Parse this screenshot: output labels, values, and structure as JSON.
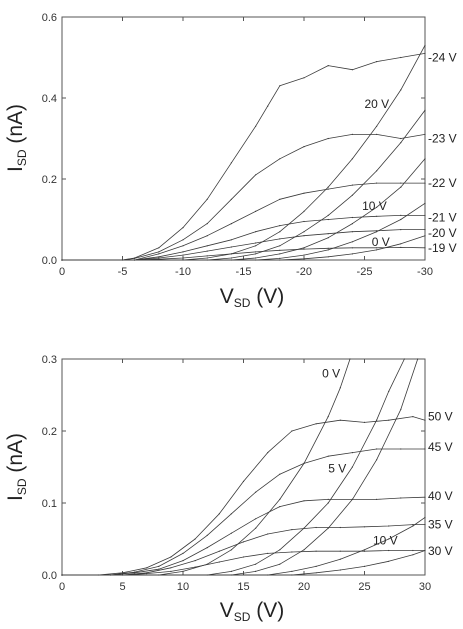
{
  "chart_data": [
    {
      "type": "line",
      "xlabel_main": "V",
      "xlabel_sub": "SD",
      "xlabel_unit": " (V)",
      "ylabel_main": "I",
      "ylabel_sub": "SD",
      "ylabel_unit": " (nA)",
      "xlim": [
        0,
        -30
      ],
      "ylim": [
        0,
        0.6
      ],
      "xticks": [
        0,
        -5,
        -10,
        -15,
        -20,
        -25,
        -30
      ],
      "xtick_labels": [
        "0",
        "-5",
        "-10",
        "-15",
        "-20",
        "-25",
        "-30"
      ],
      "yticks": [
        0.0,
        0.2,
        0.4,
        0.6
      ],
      "ytick_labels": [
        "0.0",
        "0.2",
        "0.4",
        "0.6"
      ],
      "grid": false,
      "series": [
        {
          "name": "24 V",
          "x": [
            0,
            -5,
            -6,
            -8,
            -10,
            -12,
            -14,
            -16,
            -17,
            -18,
            -20,
            -22,
            -24,
            -26,
            -28,
            -30
          ],
          "y": [
            0,
            0,
            0.005,
            0.03,
            0.08,
            0.15,
            0.24,
            0.33,
            0.38,
            0.43,
            0.45,
            0.48,
            0.47,
            0.49,
            0.5,
            0.51
          ]
        },
        {
          "name": "23 V",
          "x": [
            0,
            -5,
            -6,
            -8,
            -10,
            -12,
            -14,
            -16,
            -18,
            -20,
            -22,
            -24,
            -26,
            -28,
            -30
          ],
          "y": [
            0,
            0,
            0.004,
            0.02,
            0.05,
            0.09,
            0.15,
            0.21,
            0.25,
            0.28,
            0.3,
            0.31,
            0.31,
            0.3,
            0.31
          ]
        },
        {
          "name": "22 V",
          "x": [
            0,
            -6,
            -8,
            -10,
            -12,
            -14,
            -16,
            -18,
            -20,
            -22,
            -24,
            -26,
            -28,
            -30
          ],
          "y": [
            0,
            0,
            0.015,
            0.035,
            0.06,
            0.09,
            0.12,
            0.15,
            0.165,
            0.175,
            0.185,
            0.19,
            0.19,
            0.19
          ]
        },
        {
          "name": "21 V",
          "x": [
            0,
            -6,
            -8,
            -10,
            -12,
            -14,
            -16,
            -18,
            -20,
            -22,
            -24,
            -26,
            -28,
            -30
          ],
          "y": [
            0,
            0,
            0.008,
            0.02,
            0.035,
            0.05,
            0.07,
            0.085,
            0.095,
            0.1,
            0.105,
            0.108,
            0.11,
            0.11
          ]
        },
        {
          "name": "20 V",
          "x": [
            0,
            -6,
            -8,
            -10,
            -12,
            -14,
            -16,
            -18,
            -20,
            -22,
            -24,
            -26,
            -28,
            -30
          ],
          "y": [
            0,
            0,
            0.005,
            0.012,
            0.022,
            0.032,
            0.042,
            0.052,
            0.06,
            0.065,
            0.07,
            0.072,
            0.075,
            0.075
          ]
        },
        {
          "name": "19 V",
          "x": [
            0,
            -6,
            -8,
            -10,
            -12,
            -14,
            -16,
            -18,
            -20,
            -22,
            -24,
            -26,
            -28,
            -30
          ],
          "y": [
            0,
            0,
            0.002,
            0.005,
            0.01,
            0.015,
            0.02,
            0.024,
            0.027,
            0.029,
            0.03,
            0.03,
            0.031,
            0.03
          ]
        },
        {
          "name": "20 V",
          "x": [
            0,
            -10,
            -12,
            -14,
            -16,
            -18,
            -20,
            -22,
            -24,
            -26,
            -28,
            -30
          ],
          "y": [
            0,
            0,
            0.005,
            0.015,
            0.035,
            0.07,
            0.12,
            0.18,
            0.25,
            0.33,
            0.42,
            0.53
          ]
        },
        {
          "name": "",
          "x": [
            0,
            -12,
            -14,
            -16,
            -18,
            -20,
            -22,
            -24,
            -26,
            -28,
            -30
          ],
          "y": [
            0,
            0,
            0.005,
            0.015,
            0.035,
            0.07,
            0.11,
            0.16,
            0.22,
            0.29,
            0.37
          ]
        },
        {
          "name": "10 V",
          "x": [
            0,
            -14,
            -16,
            -18,
            -20,
            -22,
            -24,
            -26,
            -28,
            -30
          ],
          "y": [
            0,
            0,
            0.005,
            0.015,
            0.03,
            0.055,
            0.09,
            0.13,
            0.18,
            0.25
          ]
        },
        {
          "name": "",
          "x": [
            0,
            -16,
            -18,
            -20,
            -22,
            -24,
            -26,
            -28,
            -30
          ],
          "y": [
            0,
            0,
            0.004,
            0.012,
            0.025,
            0.045,
            0.07,
            0.1,
            0.14
          ]
        },
        {
          "name": "0 V",
          "x": [
            0,
            -18,
            -20,
            -22,
            -24,
            -26,
            -28,
            -30
          ],
          "y": [
            0,
            0,
            0.003,
            0.008,
            0.015,
            0.025,
            0.04,
            0.06
          ]
        }
      ],
      "annotations": [
        {
          "text": "-24 V",
          "x": -30,
          "y": 0.5,
          "outside": true
        },
        {
          "text": "-23 V",
          "x": -30,
          "y": 0.3,
          "outside": true
        },
        {
          "text": "-22 V",
          "x": -30,
          "y": 0.19,
          "outside": true
        },
        {
          "text": "-21 V",
          "x": -30,
          "y": 0.105,
          "outside": true
        },
        {
          "text": "-20 V",
          "x": -30,
          "y": 0.067,
          "outside": true
        },
        {
          "text": "-19 V",
          "x": -30,
          "y": 0.03,
          "outside": true
        },
        {
          "text": "20 V",
          "x": -25,
          "y": 0.385,
          "outside": false
        },
        {
          "text": "10 V",
          "x": -24.8,
          "y": 0.133,
          "outside": false
        },
        {
          "text": "0 V",
          "x": -25.6,
          "y": 0.045,
          "outside": false
        }
      ]
    },
    {
      "type": "line",
      "xlabel_main": "V",
      "xlabel_sub": "SD",
      "xlabel_unit": " (V)",
      "ylabel_main": "I",
      "ylabel_sub": "SD",
      "ylabel_unit": " (nA)",
      "xlim": [
        0,
        30
      ],
      "ylim": [
        0,
        0.3
      ],
      "xticks": [
        0,
        5,
        10,
        15,
        20,
        25,
        30
      ],
      "xtick_labels": [
        "0",
        "5",
        "10",
        "15",
        "20",
        "25",
        "30"
      ],
      "yticks": [
        0.0,
        0.1,
        0.2,
        0.3
      ],
      "ytick_labels": [
        "0.0",
        "0.1",
        "0.2",
        "0.3"
      ],
      "grid": false,
      "series": [
        {
          "name": "50 V",
          "x": [
            0,
            3,
            5,
            7,
            9,
            11,
            13,
            15,
            17,
            19,
            21,
            23,
            25,
            27,
            29,
            30
          ],
          "y": [
            0,
            0,
            0.003,
            0.01,
            0.025,
            0.05,
            0.085,
            0.13,
            0.17,
            0.2,
            0.21,
            0.215,
            0.212,
            0.215,
            0.22,
            0.215
          ]
        },
        {
          "name": "45 V",
          "x": [
            0,
            4,
            6,
            8,
            10,
            12,
            14,
            16,
            18,
            20,
            22,
            24,
            26,
            28,
            30
          ],
          "y": [
            0,
            0,
            0.004,
            0.012,
            0.03,
            0.055,
            0.085,
            0.115,
            0.14,
            0.155,
            0.165,
            0.17,
            0.175,
            0.175,
            0.175
          ]
        },
        {
          "name": "40 V",
          "x": [
            0,
            4,
            6,
            8,
            10,
            12,
            14,
            16,
            18,
            20,
            22,
            24,
            26,
            28,
            30
          ],
          "y": [
            0,
            0,
            0.003,
            0.008,
            0.02,
            0.038,
            0.058,
            0.078,
            0.095,
            0.103,
            0.105,
            0.105,
            0.105,
            0.107,
            0.108
          ]
        },
        {
          "name": "35 V",
          "x": [
            0,
            5,
            7,
            9,
            11,
            13,
            15,
            17,
            19,
            21,
            23,
            25,
            27,
            29,
            30
          ],
          "y": [
            0,
            0,
            0.003,
            0.01,
            0.02,
            0.033,
            0.046,
            0.057,
            0.063,
            0.066,
            0.066,
            0.067,
            0.068,
            0.07,
            0.07
          ]
        },
        {
          "name": "30 V",
          "x": [
            0,
            5,
            7,
            9,
            11,
            13,
            15,
            17,
            19,
            21,
            23,
            25,
            27,
            29,
            30
          ],
          "y": [
            0,
            0,
            0.002,
            0.005,
            0.011,
            0.018,
            0.025,
            0.03,
            0.032,
            0.033,
            0.033,
            0.033,
            0.034,
            0.034,
            0.034
          ]
        },
        {
          "name": "0 V",
          "x": [
            0,
            8,
            10,
            12,
            14,
            16,
            18,
            20,
            22,
            23,
            23.8
          ],
          "y": [
            0,
            0,
            0.005,
            0.015,
            0.035,
            0.065,
            0.105,
            0.155,
            0.22,
            0.26,
            0.3
          ]
        },
        {
          "name": "5 V",
          "x": [
            0,
            12,
            14,
            16,
            18,
            20,
            22,
            24,
            26,
            27,
            28.3
          ],
          "y": [
            0,
            0,
            0.005,
            0.015,
            0.035,
            0.065,
            0.1,
            0.15,
            0.215,
            0.255,
            0.3
          ]
        },
        {
          "name": "",
          "x": [
            0,
            14,
            16,
            18,
            20,
            22,
            24,
            26,
            28,
            29.4
          ],
          "y": [
            0,
            0,
            0.005,
            0.015,
            0.035,
            0.065,
            0.105,
            0.16,
            0.23,
            0.3
          ]
        },
        {
          "name": "10 V",
          "x": [
            0,
            17,
            19,
            21,
            23,
            25,
            27,
            29,
            30
          ],
          "y": [
            0,
            0,
            0.005,
            0.012,
            0.022,
            0.035,
            0.05,
            0.068,
            0.08
          ]
        },
        {
          "name": "",
          "x": [
            0,
            19,
            21,
            23,
            25,
            27,
            29,
            30
          ],
          "y": [
            0,
            0,
            0.003,
            0.007,
            0.012,
            0.019,
            0.028,
            0.034
          ]
        }
      ],
      "annotations": [
        {
          "text": "50 V",
          "x": 30,
          "y": 0.22,
          "outside": true
        },
        {
          "text": "45 V",
          "x": 30,
          "y": 0.178,
          "outside": true
        },
        {
          "text": "40 V",
          "x": 30,
          "y": 0.11,
          "outside": true
        },
        {
          "text": "35 V",
          "x": 30,
          "y": 0.07,
          "outside": true
        },
        {
          "text": "30 V",
          "x": 30,
          "y": 0.033,
          "outside": true
        },
        {
          "text": "0 V",
          "x": 21.5,
          "y": 0.28,
          "outside": false
        },
        {
          "text": "5 V",
          "x": 22.0,
          "y": 0.148,
          "outside": false
        },
        {
          "text": "10 V",
          "x": 25.7,
          "y": 0.048,
          "outside": false
        }
      ]
    }
  ]
}
